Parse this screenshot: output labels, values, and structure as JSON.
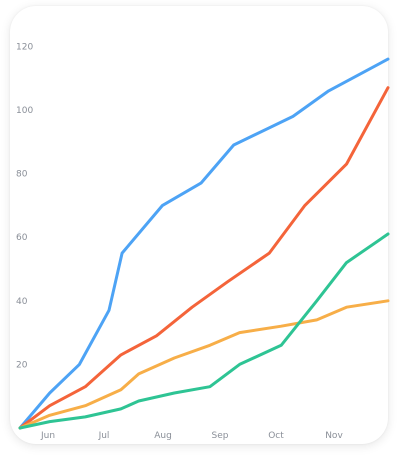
{
  "chart_data": {
    "type": "line",
    "title": "",
    "xlabel": "",
    "ylabel": "",
    "x_categories": [
      "Jun",
      "Jul",
      "Aug",
      "Sep",
      "Oct",
      "Nov"
    ],
    "xlim": [
      0,
      6.2
    ],
    "ylim": [
      0,
      130
    ],
    "y_ticks": [
      20,
      40,
      60,
      80,
      100,
      120
    ],
    "grid": false,
    "legend": "none",
    "series": [
      {
        "color": "#4da3f5",
        "x": [
          0,
          0.5,
          1.0,
          1.5,
          1.72,
          2.4,
          3.05,
          3.6,
          4.6,
          5.2,
          6.2
        ],
        "y": [
          0,
          11,
          20,
          37,
          55,
          70,
          77,
          89,
          98,
          106,
          116
        ]
      },
      {
        "color": "#f4643a",
        "x": [
          0,
          0.5,
          1.1,
          1.7,
          2.3,
          2.9,
          3.5,
          4.2,
          4.8,
          5.5,
          6.2
        ],
        "y": [
          0,
          7,
          13,
          23,
          29,
          38,
          46,
          55,
          70,
          83,
          107
        ]
      },
      {
        "color": "#f7ae48",
        "x": [
          0,
          0.5,
          1.1,
          1.7,
          2.0,
          2.6,
          3.2,
          3.7,
          4.4,
          5.0,
          5.5,
          6.2
        ],
        "y": [
          0,
          4,
          7,
          12,
          17,
          22,
          26,
          30,
          32,
          34,
          38,
          40
        ]
      },
      {
        "color": "#2ec494",
        "x": [
          0,
          0.5,
          1.1,
          1.7,
          2.0,
          2.6,
          3.2,
          3.7,
          4.4,
          5.0,
          5.5,
          6.2
        ],
        "y": [
          0,
          2,
          3.5,
          6,
          8.5,
          11,
          13,
          20,
          26,
          40,
          52,
          61
        ]
      }
    ]
  }
}
